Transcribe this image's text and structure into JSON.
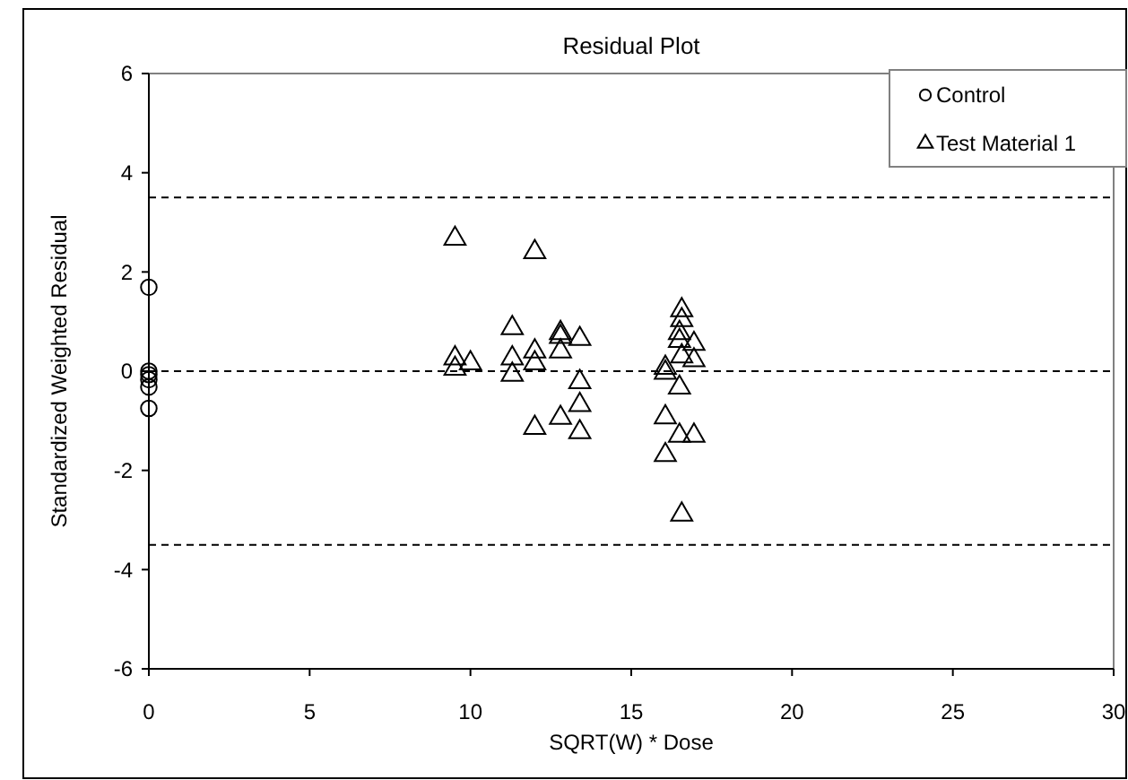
{
  "chart_data": {
    "type": "scatter",
    "title": "Residual Plot",
    "xlabel": "SQRT(W) * Dose",
    "ylabel": "Standardized Weighted Residual",
    "xlim": [
      0,
      30
    ],
    "xticks": [
      0,
      5,
      10,
      15,
      20,
      25,
      30
    ],
    "ylim": [
      -6,
      6
    ],
    "yticks": [
      -6,
      -4,
      -2,
      0,
      2,
      4,
      6
    ],
    "grid": false,
    "legend": "top right",
    "ref_lines": [
      {
        "axis": "y",
        "value": 3.5,
        "color": "#000000",
        "line_style": "dashed"
      },
      {
        "axis": "y",
        "value": 0,
        "color": "#000000",
        "line_style": "dashed"
      },
      {
        "axis": "y",
        "value": -3.5,
        "color": "#000000",
        "line_style": "dashed"
      }
    ],
    "series": [
      {
        "name": "Control",
        "color": "#000000",
        "marker": "circle",
        "x": [
          0,
          0,
          0,
          0,
          0,
          0
        ],
        "values": [
          1.69,
          0,
          -0.07,
          -0.17,
          -0.32,
          -0.75
        ]
      },
      {
        "name": "Test Material 1",
        "color": "#000000",
        "marker": "triangle",
        "x": [
          9.52,
          9.52,
          9.52,
          10,
          11.3,
          11.3,
          11.3,
          12,
          12,
          12,
          12,
          12.8,
          12.8,
          12.8,
          12.8,
          13.4,
          13.4,
          13.4,
          13.4,
          16.06,
          16.06,
          16.06,
          16.06,
          16.57,
          16.57,
          16.5,
          16.5,
          16.57,
          16.5,
          16.5,
          16.57,
          16.95,
          16.95,
          16.95
        ],
        "values": [
          2.67,
          0.26,
          0.05,
          0.16,
          0.87,
          0.26,
          -0.07,
          2.4,
          0.4,
          0.16,
          -1.14,
          0.77,
          0.69,
          0.4,
          -0.94,
          0.65,
          -0.22,
          -0.68,
          -1.23,
          0.07,
          -0.03,
          -0.93,
          -1.69,
          1.23,
          1.03,
          0.77,
          0.61,
          0.3,
          -0.33,
          -1.3,
          -2.89,
          0.55,
          0.22,
          -1.3
        ]
      }
    ]
  }
}
